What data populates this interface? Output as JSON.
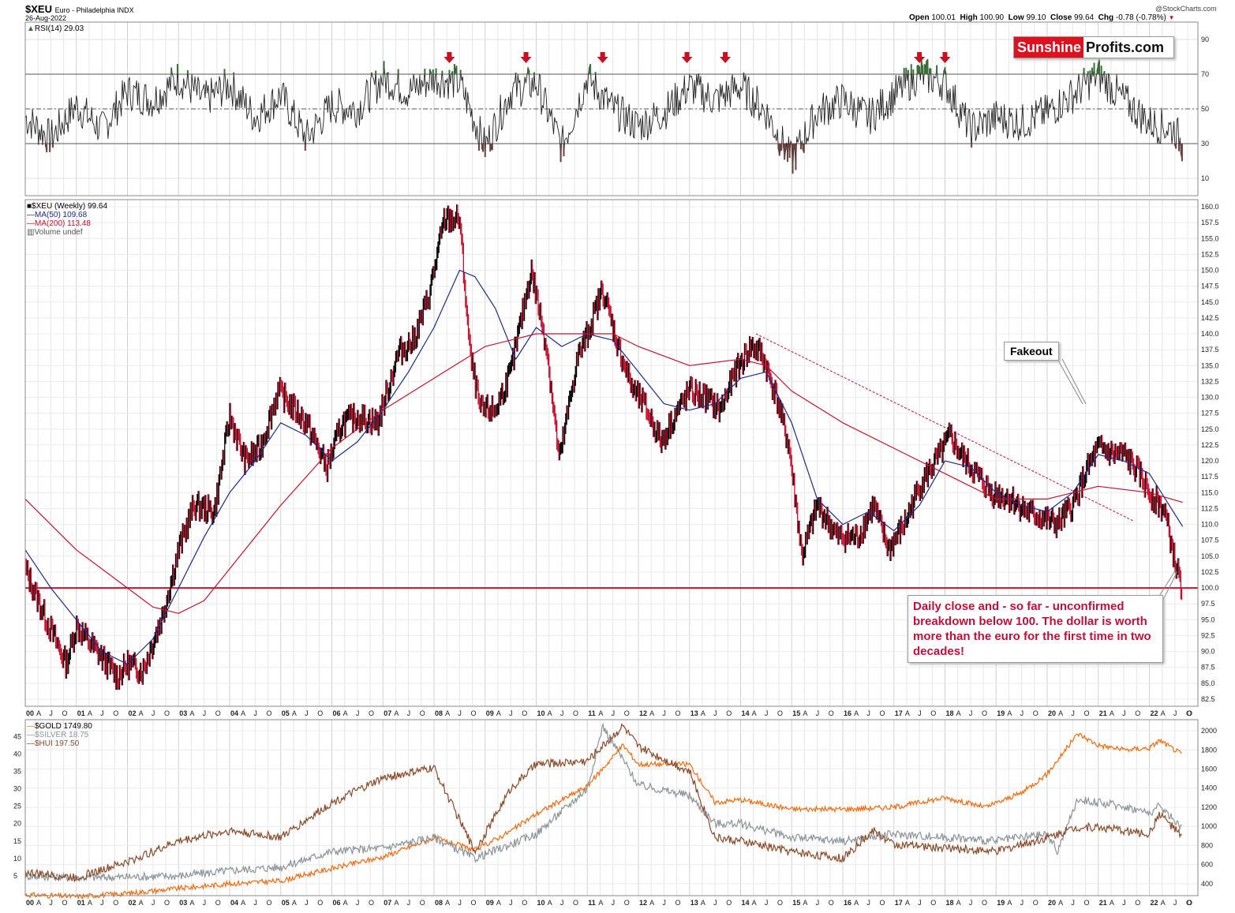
{
  "header": {
    "symbol": "$XEU",
    "name": "Euro - Philadelphia INDX",
    "date": "26-Aug-2022",
    "watermark": "@StockCharts.com",
    "open_label": "Open",
    "open": "100.01",
    "high_label": "High",
    "high": "100.90",
    "low_label": "Low",
    "low": "99.10",
    "close_label": "Close",
    "close": "99.64",
    "chg_label": "Chg",
    "chg": "-0.78 (-0.78%)",
    "chg_icon": "down-triangle-icon"
  },
  "logo": {
    "part1": "Sunshine",
    "part2": "Profits.com"
  },
  "annotations": {
    "fakeout": "Fakeout",
    "daily_close": "Daily close and - so far - unconfirmed breakdown below 100. The dollar is worth more than the euro for the first time in two decades!"
  },
  "rsi_panel": {
    "legend": "RSI(14) 29.03",
    "y_ticks": [
      "90",
      "70",
      "50",
      "30",
      "10"
    ]
  },
  "price_panel": {
    "legend": [
      "$XEU (Weekly) 99.64",
      "MA(50) 109.68",
      "MA(200) 113.48",
      "Volume undef"
    ],
    "y_ticks": [
      "160.0",
      "157.5",
      "155.0",
      "152.5",
      "150.0",
      "147.5",
      "145.0",
      "142.5",
      "140.0",
      "137.5",
      "135.0",
      "132.5",
      "130.0",
      "127.5",
      "125.0",
      "122.5",
      "120.0",
      "117.5",
      "115.0",
      "112.5",
      "110.0",
      "107.5",
      "105.0",
      "102.5",
      "100.0",
      "97.5",
      "95.0",
      "92.5",
      "90.0",
      "87.5",
      "85.0",
      "82.5"
    ]
  },
  "metals_panel": {
    "legend": [
      "$GOLD 1749.80",
      "$SILVER 18.75",
      "$HUI 197.50"
    ],
    "left_ticks": [
      "45",
      "40",
      "35",
      "30",
      "25",
      "20",
      "15",
      "10",
      "5"
    ],
    "right_ticks": [
      "2000",
      "1800",
      "1600",
      "1400",
      "1200",
      "1000",
      "800",
      "600",
      "400"
    ]
  },
  "x_axis": {
    "years": [
      "00",
      "01",
      "02",
      "03",
      "04",
      "05",
      "06",
      "07",
      "08",
      "09",
      "10",
      "11",
      "12",
      "13",
      "14",
      "15",
      "16",
      "17",
      "18",
      "19",
      "20",
      "21",
      "22"
    ],
    "months": [
      "A",
      "J",
      "O"
    ],
    "last": "O"
  },
  "colors": {
    "price_up": "#000000",
    "price_down": "#c8102e",
    "ma50": "#1c2a8c",
    "ma200": "#c8102e",
    "rsi_line": "#222222",
    "rsi_over": "#3c6e3c",
    "rsi_under": "#6b4040",
    "gold": "#ef6c12",
    "silver": "#8c9499",
    "hui": "#8a4a2a",
    "arrow": "#c8101e",
    "level_line": "#c8102e"
  },
  "chart_data": [
    {
      "type": "line",
      "title": "RSI(14)",
      "ylim": [
        0,
        100
      ],
      "reference_lines": [
        70,
        50,
        30
      ],
      "arrows_at_years": [
        2008.3,
        2009.8,
        2011.3,
        2012.95,
        2013.7,
        2017.5,
        2018.0
      ],
      "series": [
        {
          "name": "RSI(14)",
          "x": [
            2000,
            2000.5,
            2001,
            2001.5,
            2002,
            2002.5,
            2003,
            2003.5,
            2004,
            2004.5,
            2005,
            2005.5,
            2006,
            2006.5,
            2007,
            2007.5,
            2008,
            2008.5,
            2009,
            2009.5,
            2010,
            2010.5,
            2011,
            2011.5,
            2012,
            2012.5,
            2013,
            2013.5,
            2014,
            2014.5,
            2015,
            2015.5,
            2016,
            2016.5,
            2017,
            2017.5,
            2018,
            2018.5,
            2019,
            2019.5,
            2020,
            2020.5,
            2021,
            2021.5,
            2022,
            2022.5,
            2022.65
          ],
          "values": [
            45,
            33,
            52,
            38,
            60,
            55,
            68,
            55,
            64,
            45,
            58,
            33,
            52,
            50,
            68,
            60,
            68,
            65,
            28,
            60,
            65,
            28,
            68,
            50,
            40,
            48,
            63,
            55,
            63,
            48,
            20,
            48,
            55,
            45,
            58,
            70,
            65,
            38,
            45,
            42,
            48,
            58,
            70,
            55,
            42,
            38,
            29
          ]
        }
      ]
    },
    {
      "type": "line",
      "title": "$XEU (Weekly) 99.64",
      "ylim": [
        82.5,
        160
      ],
      "reference_lines": [
        100
      ],
      "series": [
        {
          "name": "$XEU (Weekly) 99.64",
          "x": [
            2000,
            2000.3,
            2000.8,
            2001.0,
            2001.3,
            2001.5,
            2001.8,
            2002.0,
            2002.3,
            2002.7,
            2003.0,
            2003.3,
            2003.7,
            2004.0,
            2004.3,
            2004.6,
            2004.95,
            2005.5,
            2005.9,
            2006.2,
            2006.5,
            2006.9,
            2007.3,
            2007.6,
            2007.9,
            2008.2,
            2008.5,
            2008.7,
            2008.9,
            2009.2,
            2009.5,
            2009.9,
            2010.2,
            2010.45,
            2010.8,
            2011.0,
            2011.3,
            2011.6,
            2011.9,
            2012.1,
            2012.45,
            2012.7,
            2013.0,
            2013.3,
            2013.6,
            2013.9,
            2014.2,
            2014.4,
            2014.7,
            2014.95,
            2015.2,
            2015.5,
            2015.9,
            2016.3,
            2016.6,
            2016.9,
            2017.2,
            2017.5,
            2017.9,
            2018.1,
            2018.3,
            2018.6,
            2018.9,
            2019.3,
            2019.6,
            2019.9,
            2020.2,
            2020.5,
            2020.8,
            2021.0,
            2021.3,
            2021.5,
            2021.8,
            2022.0,
            2022.3,
            2022.5,
            2022.65
          ],
          "values": [
            103,
            97,
            88,
            94,
            91,
            89,
            86,
            88,
            87,
            96,
            106,
            113,
            112,
            127,
            120,
            122,
            131,
            126,
            119,
            126,
            127,
            126,
            137,
            139,
            146,
            158,
            158,
            137,
            128,
            128,
            134,
            150,
            138,
            120,
            136,
            140,
            147,
            138,
            131,
            129,
            123,
            127,
            131,
            130,
            128,
            134,
            138,
            137,
            130,
            122,
            105,
            113,
            108,
            108,
            113,
            106,
            110,
            116,
            121,
            124,
            121,
            118,
            115,
            114,
            112,
            111,
            110,
            113,
            119,
            122,
            121,
            121,
            118,
            115,
            112,
            104,
            99.64
          ]
        },
        {
          "name": "MA(50) 109.68",
          "x": [
            2000,
            2000.5,
            2001.0,
            2001.5,
            2002.0,
            2002.5,
            2003.0,
            2003.5,
            2004.0,
            2004.5,
            2005.0,
            2005.5,
            2006.0,
            2006.5,
            2007.0,
            2007.5,
            2008.0,
            2008.5,
            2008.8,
            2009.2,
            2009.6,
            2010.0,
            2010.5,
            2011.0,
            2011.5,
            2012.0,
            2012.5,
            2013.0,
            2013.5,
            2014.0,
            2014.5,
            2015.0,
            2015.5,
            2016.0,
            2016.5,
            2017.0,
            2017.5,
            2018.0,
            2018.5,
            2019.0,
            2019.5,
            2020.0,
            2020.5,
            2021.0,
            2021.5,
            2022.0,
            2022.65
          ],
          "values": [
            106,
            100,
            95,
            90,
            88,
            92,
            100,
            108,
            115,
            120,
            126,
            124,
            120,
            123,
            128,
            134,
            141,
            150,
            149,
            144,
            136,
            141,
            138,
            140,
            139,
            134,
            129,
            128,
            129,
            133,
            134,
            126,
            114,
            110,
            112,
            109,
            113,
            120,
            119,
            115,
            113,
            112,
            115,
            121,
            120,
            118,
            109.68
          ]
        },
        {
          "name": "MA(200) 113.48",
          "x": [
            2000,
            2001.0,
            2002.0,
            2002.5,
            2003.0,
            2003.5,
            2004.0,
            2005.0,
            2006.0,
            2007.0,
            2008.0,
            2009.0,
            2010.0,
            2011.0,
            2011.5,
            2012.0,
            2013.0,
            2014.0,
            2014.5,
            2015.0,
            2016.0,
            2017.0,
            2018.0,
            2019.0,
            2020.0,
            2021.0,
            2022.0,
            2022.65
          ],
          "values": [
            114,
            106,
            100,
            97,
            96,
            98,
            103,
            113,
            122,
            128,
            133,
            138,
            140,
            140,
            140,
            138,
            135,
            136,
            135,
            131,
            126,
            122,
            118,
            114,
            114,
            116,
            115,
            113.48
          ]
        }
      ]
    },
    {
      "type": "line",
      "title": "$GOLD / $SILVER / $HUI",
      "ylim_left": [
        0,
        48
      ],
      "ylim_right": [
        300,
        2050
      ],
      "series": [
        {
          "name": "$GOLD 1749.80",
          "axis": "right",
          "x": [
            2000,
            2001,
            2002,
            2003,
            2004,
            2005,
            2006,
            2007,
            2008,
            2008.8,
            2009.5,
            2010,
            2011,
            2011.7,
            2012,
            2013,
            2013.5,
            2014,
            2015,
            2016,
            2017,
            2018,
            2018.8,
            2019.5,
            2020,
            2020.6,
            2021,
            2021.5,
            2022,
            2022.2,
            2022.65
          ],
          "values": [
            285,
            265,
            300,
            350,
            400,
            430,
            560,
            680,
            880,
            750,
            950,
            1130,
            1420,
            1850,
            1650,
            1650,
            1250,
            1280,
            1180,
            1180,
            1200,
            1300,
            1200,
            1350,
            1550,
            1970,
            1850,
            1800,
            1820,
            1900,
            1749.8
          ]
        },
        {
          "name": "$SILVER 18.75",
          "axis": "left",
          "x": [
            2000,
            2001,
            2002,
            2003,
            2004,
            2005,
            2006,
            2007,
            2008,
            2008.8,
            2009.5,
            2010,
            2011,
            2011.3,
            2012,
            2013,
            2013.5,
            2014,
            2015,
            2016,
            2017,
            2018,
            2019,
            2020,
            2020.2,
            2020.6,
            2021,
            2021.5,
            2022,
            2022.2,
            2022.65
          ],
          "values": [
            5,
            4.5,
            4.7,
            5,
            6.5,
            7.5,
            12,
            13,
            16,
            10,
            14,
            17,
            30,
            48,
            31,
            28,
            20,
            20,
            16,
            15,
            17,
            16,
            15,
            17,
            12,
            27,
            26,
            25,
            23,
            25,
            18.75
          ]
        },
        {
          "name": "$HUI 197.50",
          "axis": "left",
          "x": [
            2000,
            2001,
            2002,
            2003,
            2004,
            2005,
            2006,
            2007,
            2008,
            2008.8,
            2009.5,
            2010,
            2011,
            2011.7,
            2012,
            2013,
            2013.5,
            2014,
            2015,
            2016,
            2016.6,
            2017,
            2018,
            2019,
            2020,
            2020.6,
            2021,
            2022,
            2022.2,
            2022.65
          ],
          "values": [
            6,
            4.5,
            9,
            15,
            18,
            16,
            26,
            33,
            36,
            12,
            30,
            37,
            38,
            48,
            42,
            35,
            16,
            15,
            12,
            10,
            18,
            14,
            13,
            12,
            16,
            19,
            19,
            17,
            23,
            16
          ]
        }
      ]
    }
  ]
}
